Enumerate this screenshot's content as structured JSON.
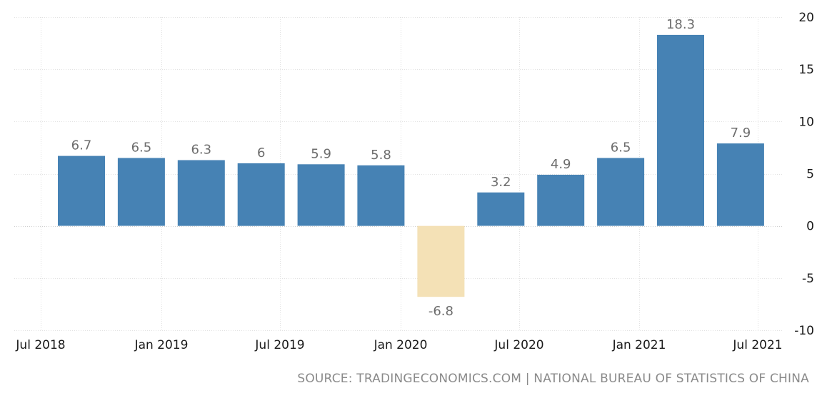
{
  "chart_data": {
    "type": "bar",
    "title": "",
    "xlabel": "",
    "ylabel": "",
    "categories": [
      "Q3 2018",
      "Q4 2018",
      "Q1 2019",
      "Q2 2019",
      "Q3 2019",
      "Q4 2019",
      "Q1 2020",
      "Q2 2020",
      "Q3 2020",
      "Q4 2020",
      "Q1 2021",
      "Q2 2021"
    ],
    "values": [
      6.7,
      6.5,
      6.3,
      6,
      5.9,
      5.8,
      -6.8,
      3.2,
      4.9,
      6.5,
      18.3,
      7.9
    ],
    "value_labels": [
      "6.7",
      "6.5",
      "6.3",
      "6",
      "5.9",
      "5.8",
      "-6.8",
      "3.2",
      "4.9",
      "6.5",
      "18.3",
      "7.9"
    ],
    "x_tick_labels": [
      "Jul 2018",
      "Jan 2019",
      "Jul 2019",
      "Jan 2020",
      "Jul 2020",
      "Jan 2021",
      "Jul 2021"
    ],
    "y_tick_labels": [
      "20",
      "15",
      "10",
      "5",
      "0",
      "-5",
      "-10"
    ],
    "ylim": [
      -10,
      20
    ],
    "y_axis_position": "right",
    "grid": true,
    "legend": "none",
    "colors": {
      "positive": "#4682b4",
      "negative": "#f4e1b6",
      "label": "#6d6d6d",
      "tick": "#1a1a1a",
      "grid": "#e2e2e2",
      "source": "#8a8a8a"
    }
  },
  "source_text": "SOURCE: TRADINGECONOMICS.COM | NATIONAL BUREAU OF STATISTICS OF CHINA"
}
